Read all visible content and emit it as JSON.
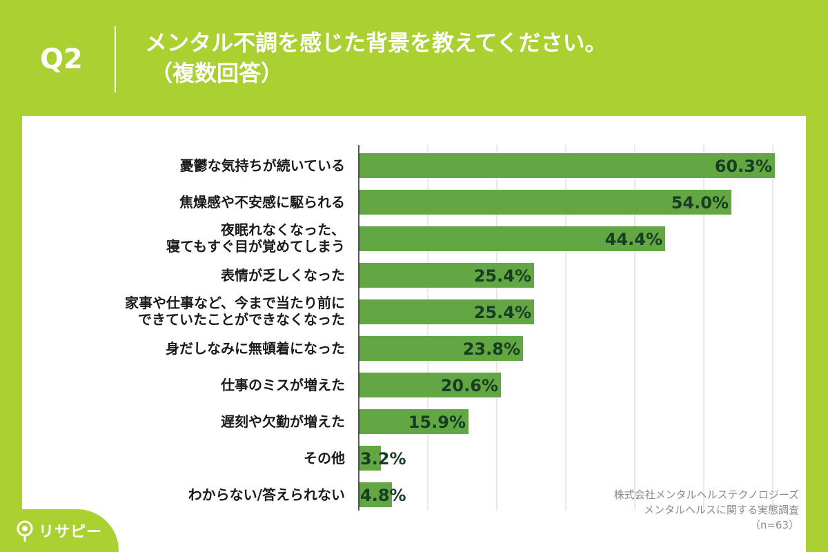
{
  "header": {
    "question_number": "Q2",
    "title_line1": "メンタル不調を感じた背景を教えてください。",
    "title_line2": "（複数回答）"
  },
  "chart_data": {
    "type": "bar",
    "orientation": "horizontal",
    "categories": [
      [
        "憂鬱な気持ちが続いている"
      ],
      [
        "焦燥感や不安感に駆られる"
      ],
      [
        "夜眠れなくなった、",
        "寝てもすぐ目が覚めてしまう"
      ],
      [
        "表情が乏しくなった"
      ],
      [
        "家事や仕事など、今まで当たり前に",
        "できていたことができなくなった"
      ],
      [
        "身だしなみに無頓着になった"
      ],
      [
        "仕事のミスが増えた"
      ],
      [
        "遅刻や欠勤が増えた"
      ],
      [
        "その他"
      ],
      [
        "わからない/答えられない"
      ]
    ],
    "values": [
      60.3,
      54.0,
      44.4,
      25.4,
      25.4,
      23.8,
      20.6,
      15.9,
      3.2,
      4.8
    ],
    "value_labels": [
      "60.3%",
      "54.0%",
      "44.4%",
      "25.4%",
      "25.4%",
      "23.8%",
      "20.6%",
      "15.9%",
      "3.2%",
      "4.8%"
    ],
    "xlim": [
      0,
      70
    ],
    "grid_step": 10,
    "grid": true,
    "bar_color": "#63a744",
    "grid_color": "#d0d0d0"
  },
  "footnote": {
    "line1": "株式会社メンタルヘルステクノロジーズ",
    "line2": "メンタルヘルスに関する実態調査",
    "line3": "（n=63）"
  },
  "brand": {
    "name": "リサピー",
    "icon": "pin-icon",
    "color": "#abd032"
  }
}
